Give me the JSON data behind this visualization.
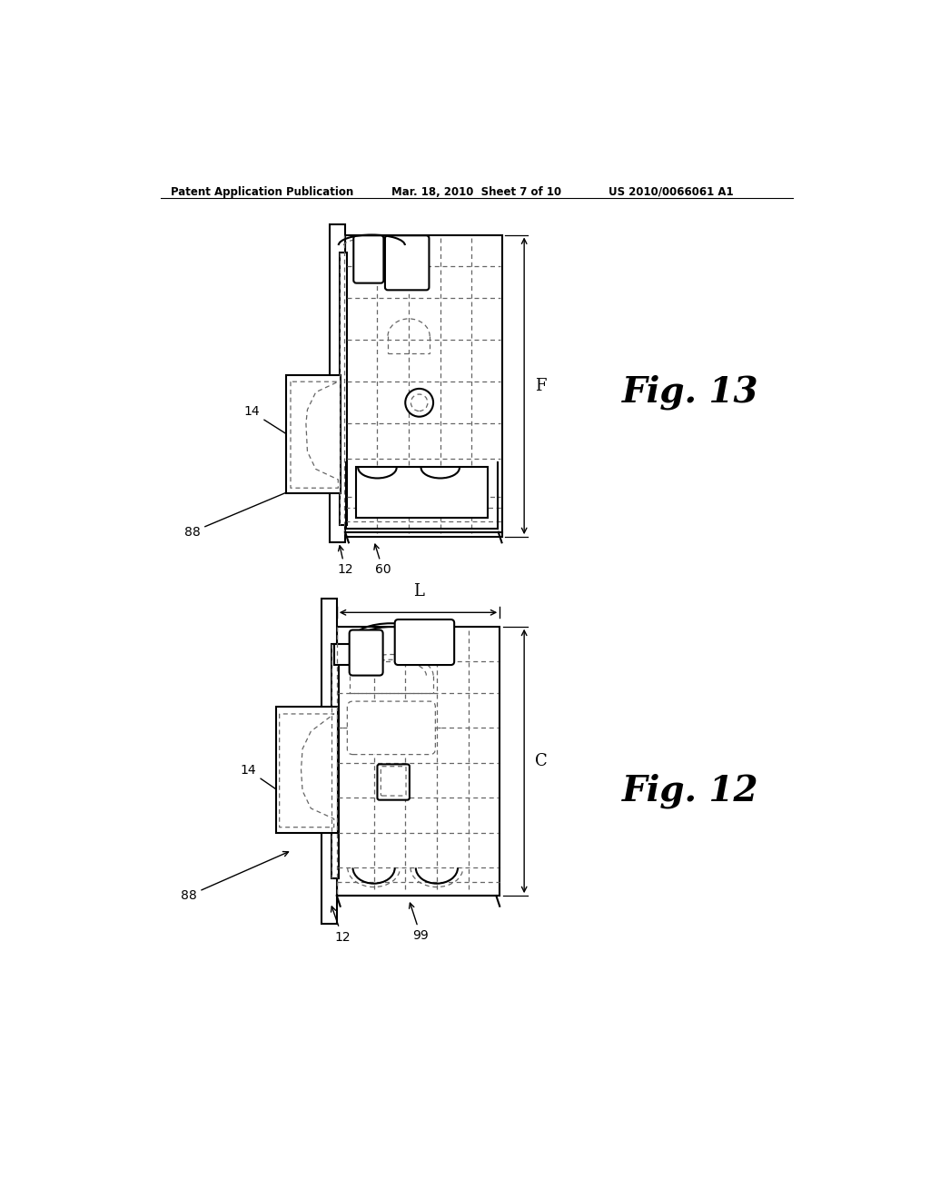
{
  "background_color": "#ffffff",
  "header_left": "Patent Application Publication",
  "header_mid": "Mar. 18, 2010  Sheet 7 of 10",
  "header_right": "US 2010/0066061 A1",
  "fig13_label": "Fig. 13",
  "fig12_label": "Fig. 12",
  "line_color": "#000000",
  "dashed_color": "#666666"
}
